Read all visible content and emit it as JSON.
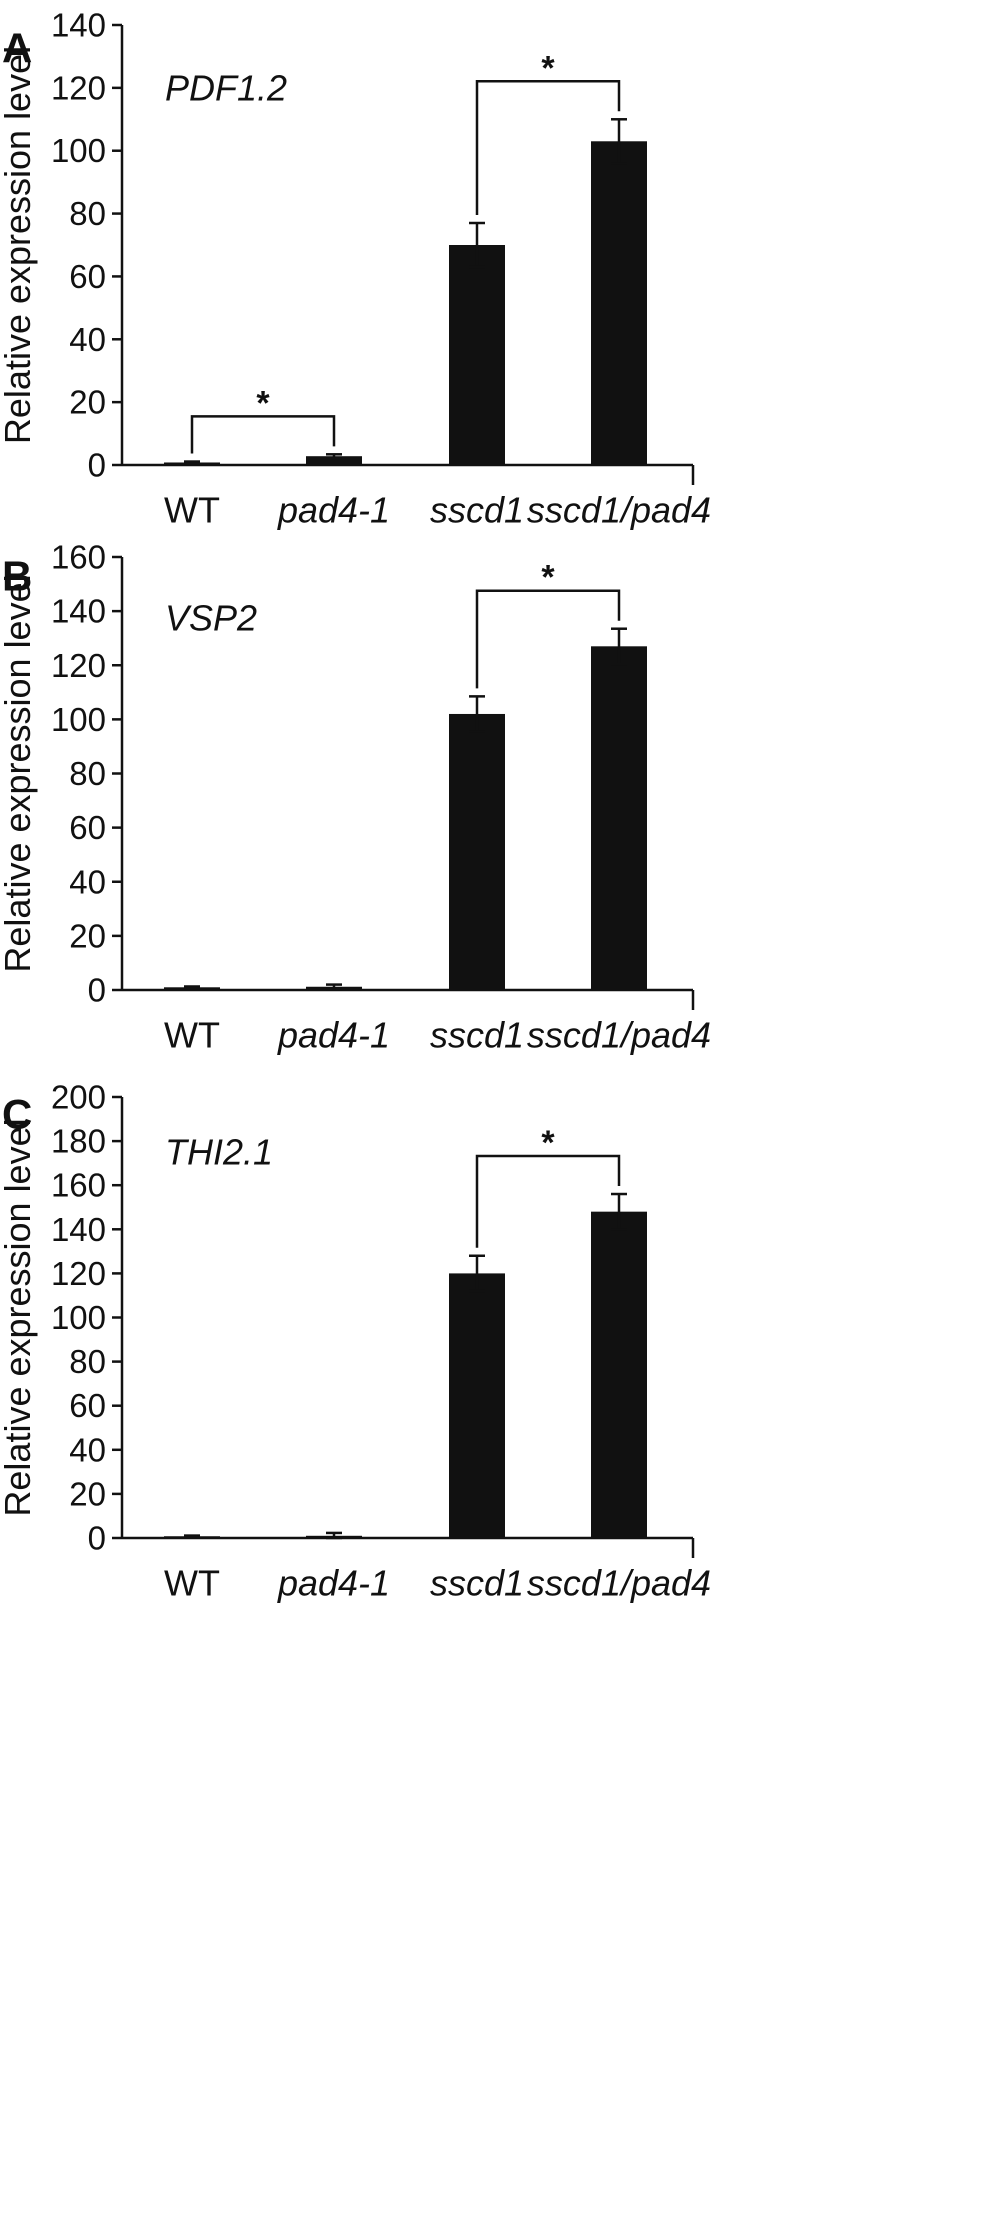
{
  "chart_data": [
    {
      "type": "bar",
      "panel": "A",
      "gene": "PDF1.2",
      "ylabel": "Relative expression level",
      "categories": [
        "WT",
        "pad4-1",
        "sscd1",
        "sscd1/pad4"
      ],
      "italic_categories": [
        false,
        true,
        true,
        true
      ],
      "values": [
        0.8,
        2.8,
        70,
        103
      ],
      "errors": [
        0.3,
        0.6,
        7,
        7
      ],
      "ylim": [
        0,
        140
      ],
      "yticks": [
        0,
        20,
        40,
        60,
        80,
        100,
        120,
        140
      ],
      "ytick_labels": [
        "0",
        "20",
        "40",
        "60",
        "80",
        "100",
        "120",
        "140"
      ],
      "significance": [
        {
          "from": 0,
          "to": 1,
          "label": "*"
        },
        {
          "from": 2,
          "to": 3,
          "label": "*"
        }
      ]
    },
    {
      "type": "bar",
      "panel": "B",
      "gene": "VSP2",
      "ylabel": "Relative expression level",
      "categories": [
        "WT",
        "pad4-1",
        "sscd1",
        "sscd1/pad4"
      ],
      "italic_categories": [
        false,
        true,
        true,
        true
      ],
      "values": [
        1,
        1.2,
        102,
        127
      ],
      "errors": [
        0.3,
        0.8,
        6.5,
        6.5
      ],
      "ylim": [
        0,
        160
      ],
      "yticks": [
        0,
        20,
        40,
        60,
        80,
        100,
        120,
        140,
        160
      ],
      "ytick_labels": [
        "0",
        "20",
        "40",
        "60",
        "80",
        "100",
        "120",
        "140",
        "160"
      ],
      "significance": [
        {
          "from": 2,
          "to": 3,
          "label": "*"
        }
      ]
    },
    {
      "type": "bar",
      "panel": "C",
      "gene": "THI2.1",
      "ylabel": "Relative expression level",
      "categories": [
        "WT",
        "pad4-1",
        "sscd1",
        "sscd1/pad4"
      ],
      "italic_categories": [
        false,
        true,
        true,
        true
      ],
      "values": [
        0.8,
        1,
        120,
        148
      ],
      "errors": [
        0.3,
        1.3,
        8,
        8
      ],
      "ylim": [
        0,
        200
      ],
      "yticks": [
        0,
        20,
        40,
        60,
        80,
        100,
        120,
        140,
        160,
        180,
        200
      ],
      "ytick_labels": [
        "0",
        "20",
        "40",
        "60",
        "80",
        "100",
        "120",
        "140",
        "160",
        "180",
        "200"
      ],
      "significance": [
        {
          "from": 2,
          "to": 3,
          "label": "*"
        }
      ]
    }
  ],
  "colors": {
    "bar": "#111111",
    "axis": "#111111",
    "background": "#ffffff"
  }
}
